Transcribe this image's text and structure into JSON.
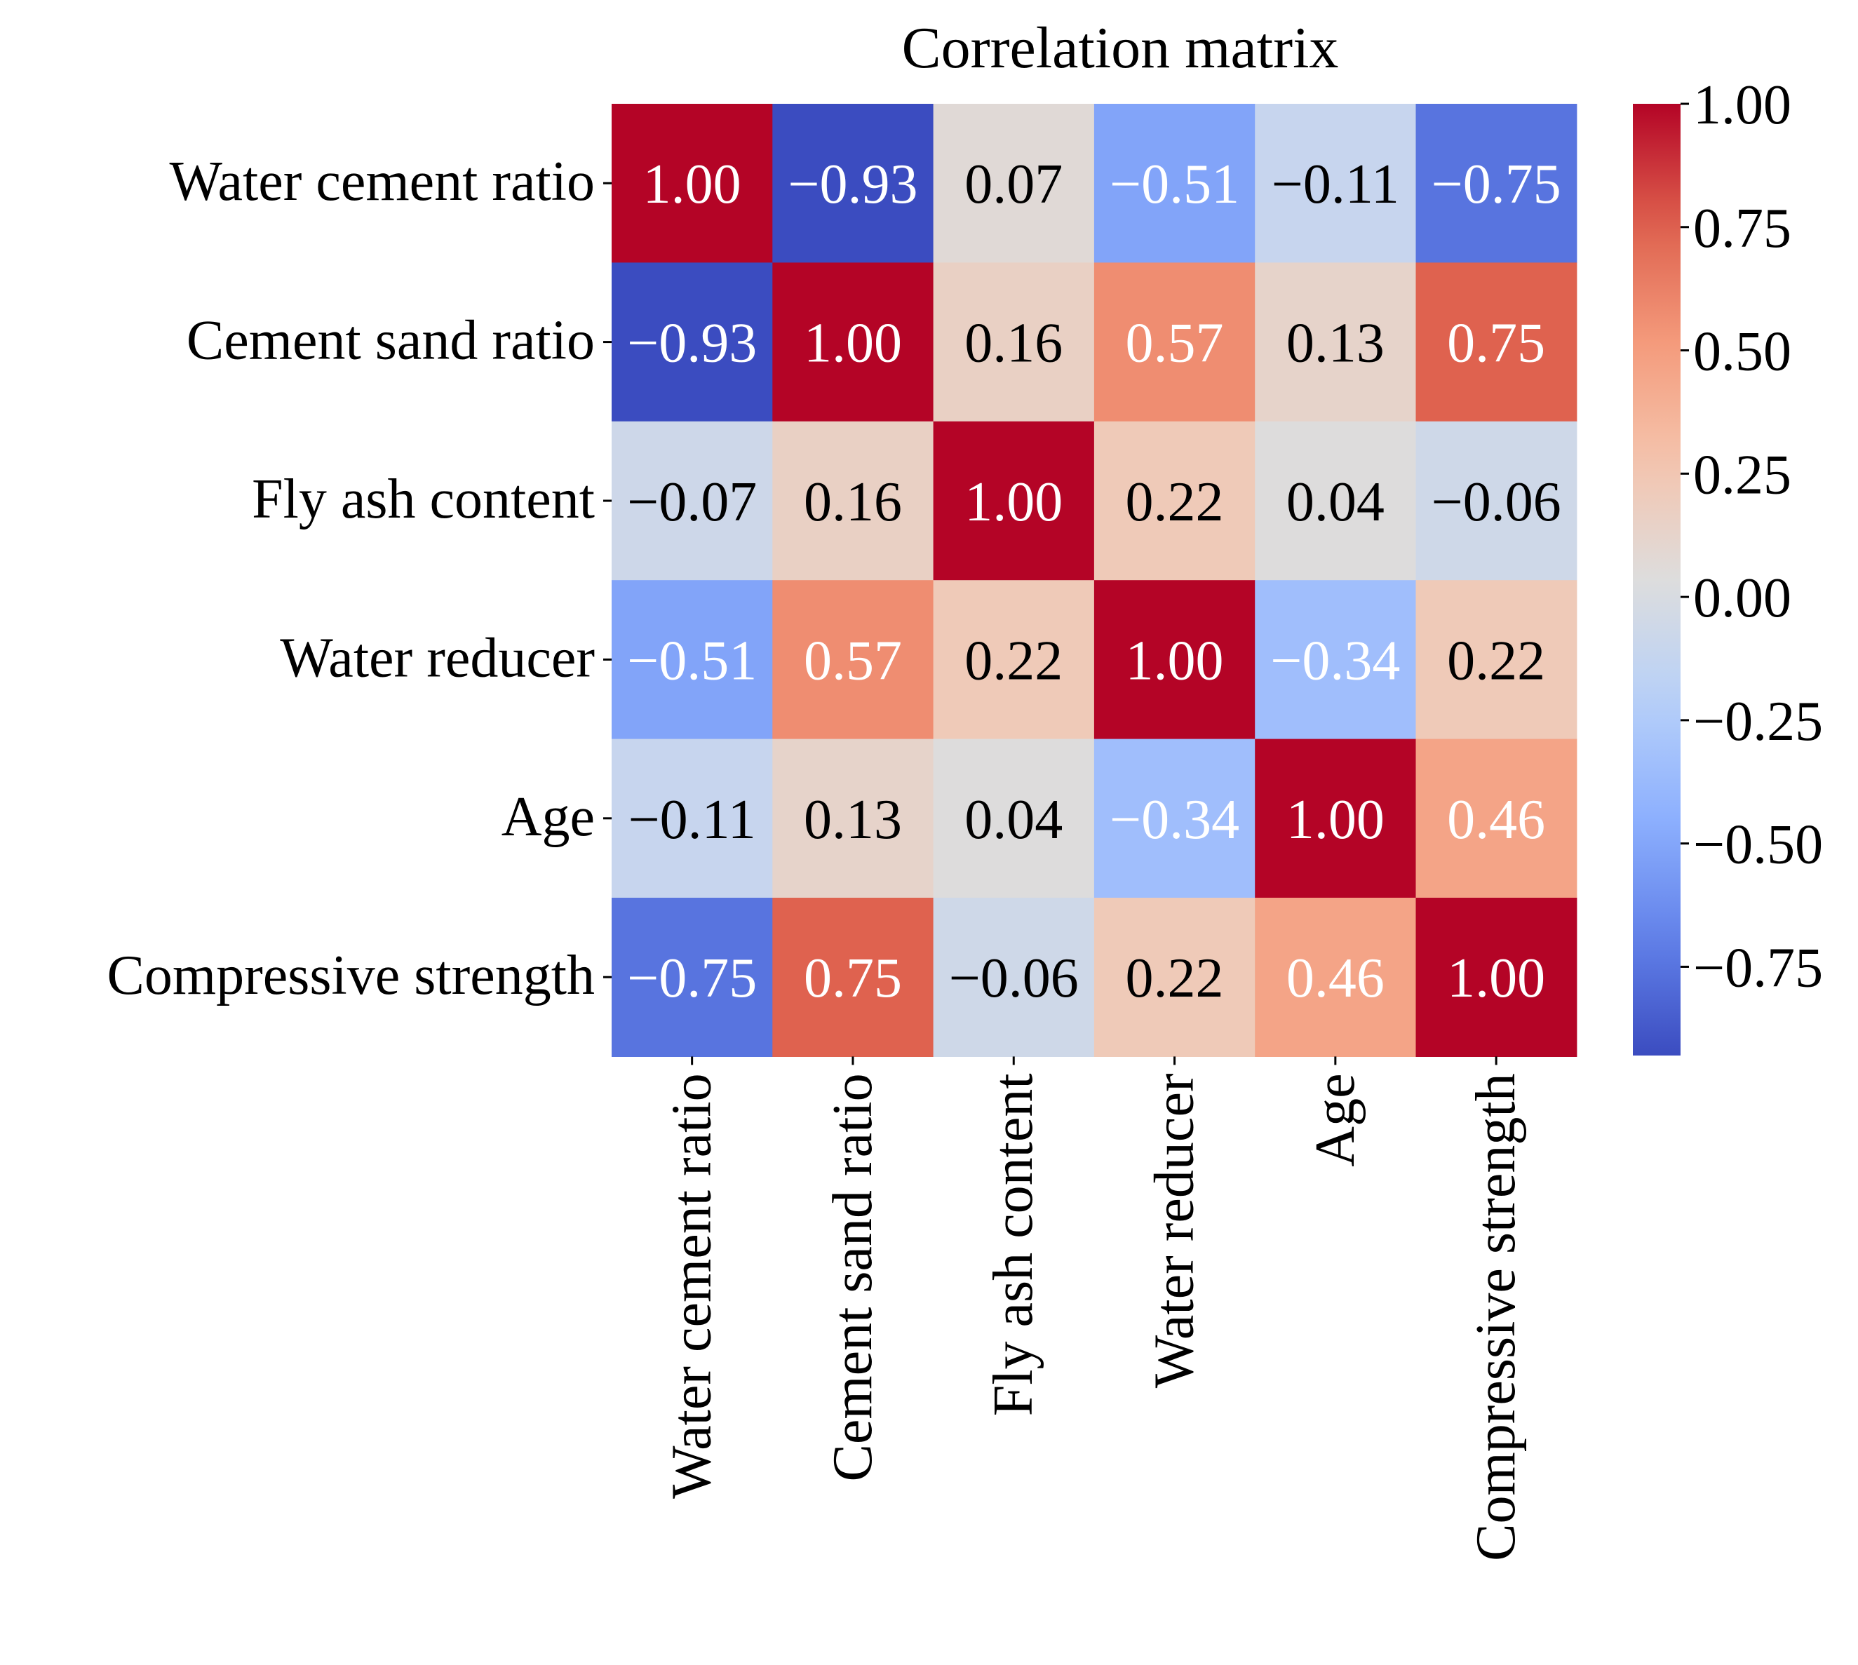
{
  "chart_data": {
    "type": "heatmap",
    "title": "Correlation matrix",
    "row_labels": [
      "Water cement ratio",
      "Cement sand ratio",
      "Fly ash content",
      "Water reducer",
      "Age",
      "Compressive strength"
    ],
    "col_labels": [
      "Water cement ratio",
      "Cement sand ratio",
      "Fly ash content",
      "Water reducer",
      "Age",
      "Compressive strength"
    ],
    "values": [
      [
        1.0,
        -0.93,
        0.07,
        -0.51,
        -0.11,
        -0.75
      ],
      [
        -0.93,
        1.0,
        0.16,
        0.57,
        0.13,
        0.75
      ],
      [
        -0.07,
        0.16,
        1.0,
        0.22,
        0.04,
        -0.06
      ],
      [
        -0.51,
        0.57,
        0.22,
        1.0,
        -0.34,
        0.22
      ],
      [
        -0.11,
        0.13,
        0.04,
        -0.34,
        1.0,
        0.46
      ],
      [
        -0.75,
        0.75,
        -0.06,
        0.22,
        0.46,
        1.0
      ]
    ],
    "annotations": [
      [
        "1.00",
        "−0.93",
        "0.07",
        "−0.51",
        "−0.11",
        "−0.75"
      ],
      [
        "−0.93",
        "1.00",
        "0.16",
        "0.57",
        "0.13",
        "0.75"
      ],
      [
        "−0.07",
        "0.16",
        "1.00",
        "0.22",
        "0.04",
        "−0.06"
      ],
      [
        "−0.51",
        "0.57",
        "0.22",
        "1.00",
        "−0.34",
        "0.22"
      ],
      [
        "−0.11",
        "0.13",
        "0.04",
        "−0.34",
        "1.00",
        "0.46"
      ],
      [
        "−0.75",
        "0.75",
        "−0.06",
        "0.22",
        "0.46",
        "1.00"
      ]
    ],
    "colormap": "coolwarm",
    "vmin": -0.93,
    "vmax": 1.0,
    "colorbar": {
      "ticks": [
        1.0,
        0.75,
        0.5,
        0.25,
        0.0,
        -0.25,
        -0.5,
        -0.75
      ],
      "tick_labels": [
        "1.00",
        "0.75",
        "0.50",
        "0.25",
        "0.00",
        "−0.25",
        "−0.50",
        "−0.75"
      ]
    },
    "colors": {
      "min": "#3b4cc0",
      "mid": "#dddddd",
      "max": "#b40426"
    }
  }
}
